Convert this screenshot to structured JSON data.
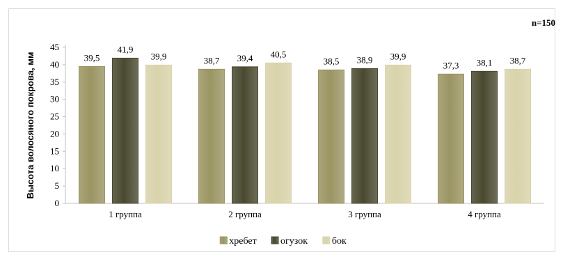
{
  "chart_data": {
    "type": "bar",
    "annotation": "n=150",
    "ylabel": "Высота волосяного покрова, мм",
    "xlabel": "",
    "categories": [
      "1 группа",
      "2 группа",
      "3 группа",
      "4 группа"
    ],
    "series": [
      {
        "name": "хребет",
        "values": [
          39.5,
          38.7,
          38.5,
          37.3
        ],
        "labels": [
          "39,5",
          "38,7",
          "38,5",
          "37,3"
        ],
        "color": "#9b9563"
      },
      {
        "name": "огузок",
        "values": [
          41.9,
          39.4,
          38.9,
          38.1
        ],
        "labels": [
          "41,9",
          "39,4",
          "38,9",
          "38,1"
        ],
        "color": "#4a4930"
      },
      {
        "name": "бок",
        "values": [
          39.9,
          40.5,
          39.9,
          38.7
        ],
        "labels": [
          "39,9",
          "40,5",
          "39,9",
          "38,7"
        ],
        "color": "#d8d3aa"
      }
    ],
    "ylim": [
      0,
      45
    ],
    "yticks": [
      "0",
      "5",
      "10",
      "15",
      "20",
      "25",
      "30",
      "35",
      "40",
      "45"
    ],
    "grid": false,
    "legend_position": "bottom"
  }
}
